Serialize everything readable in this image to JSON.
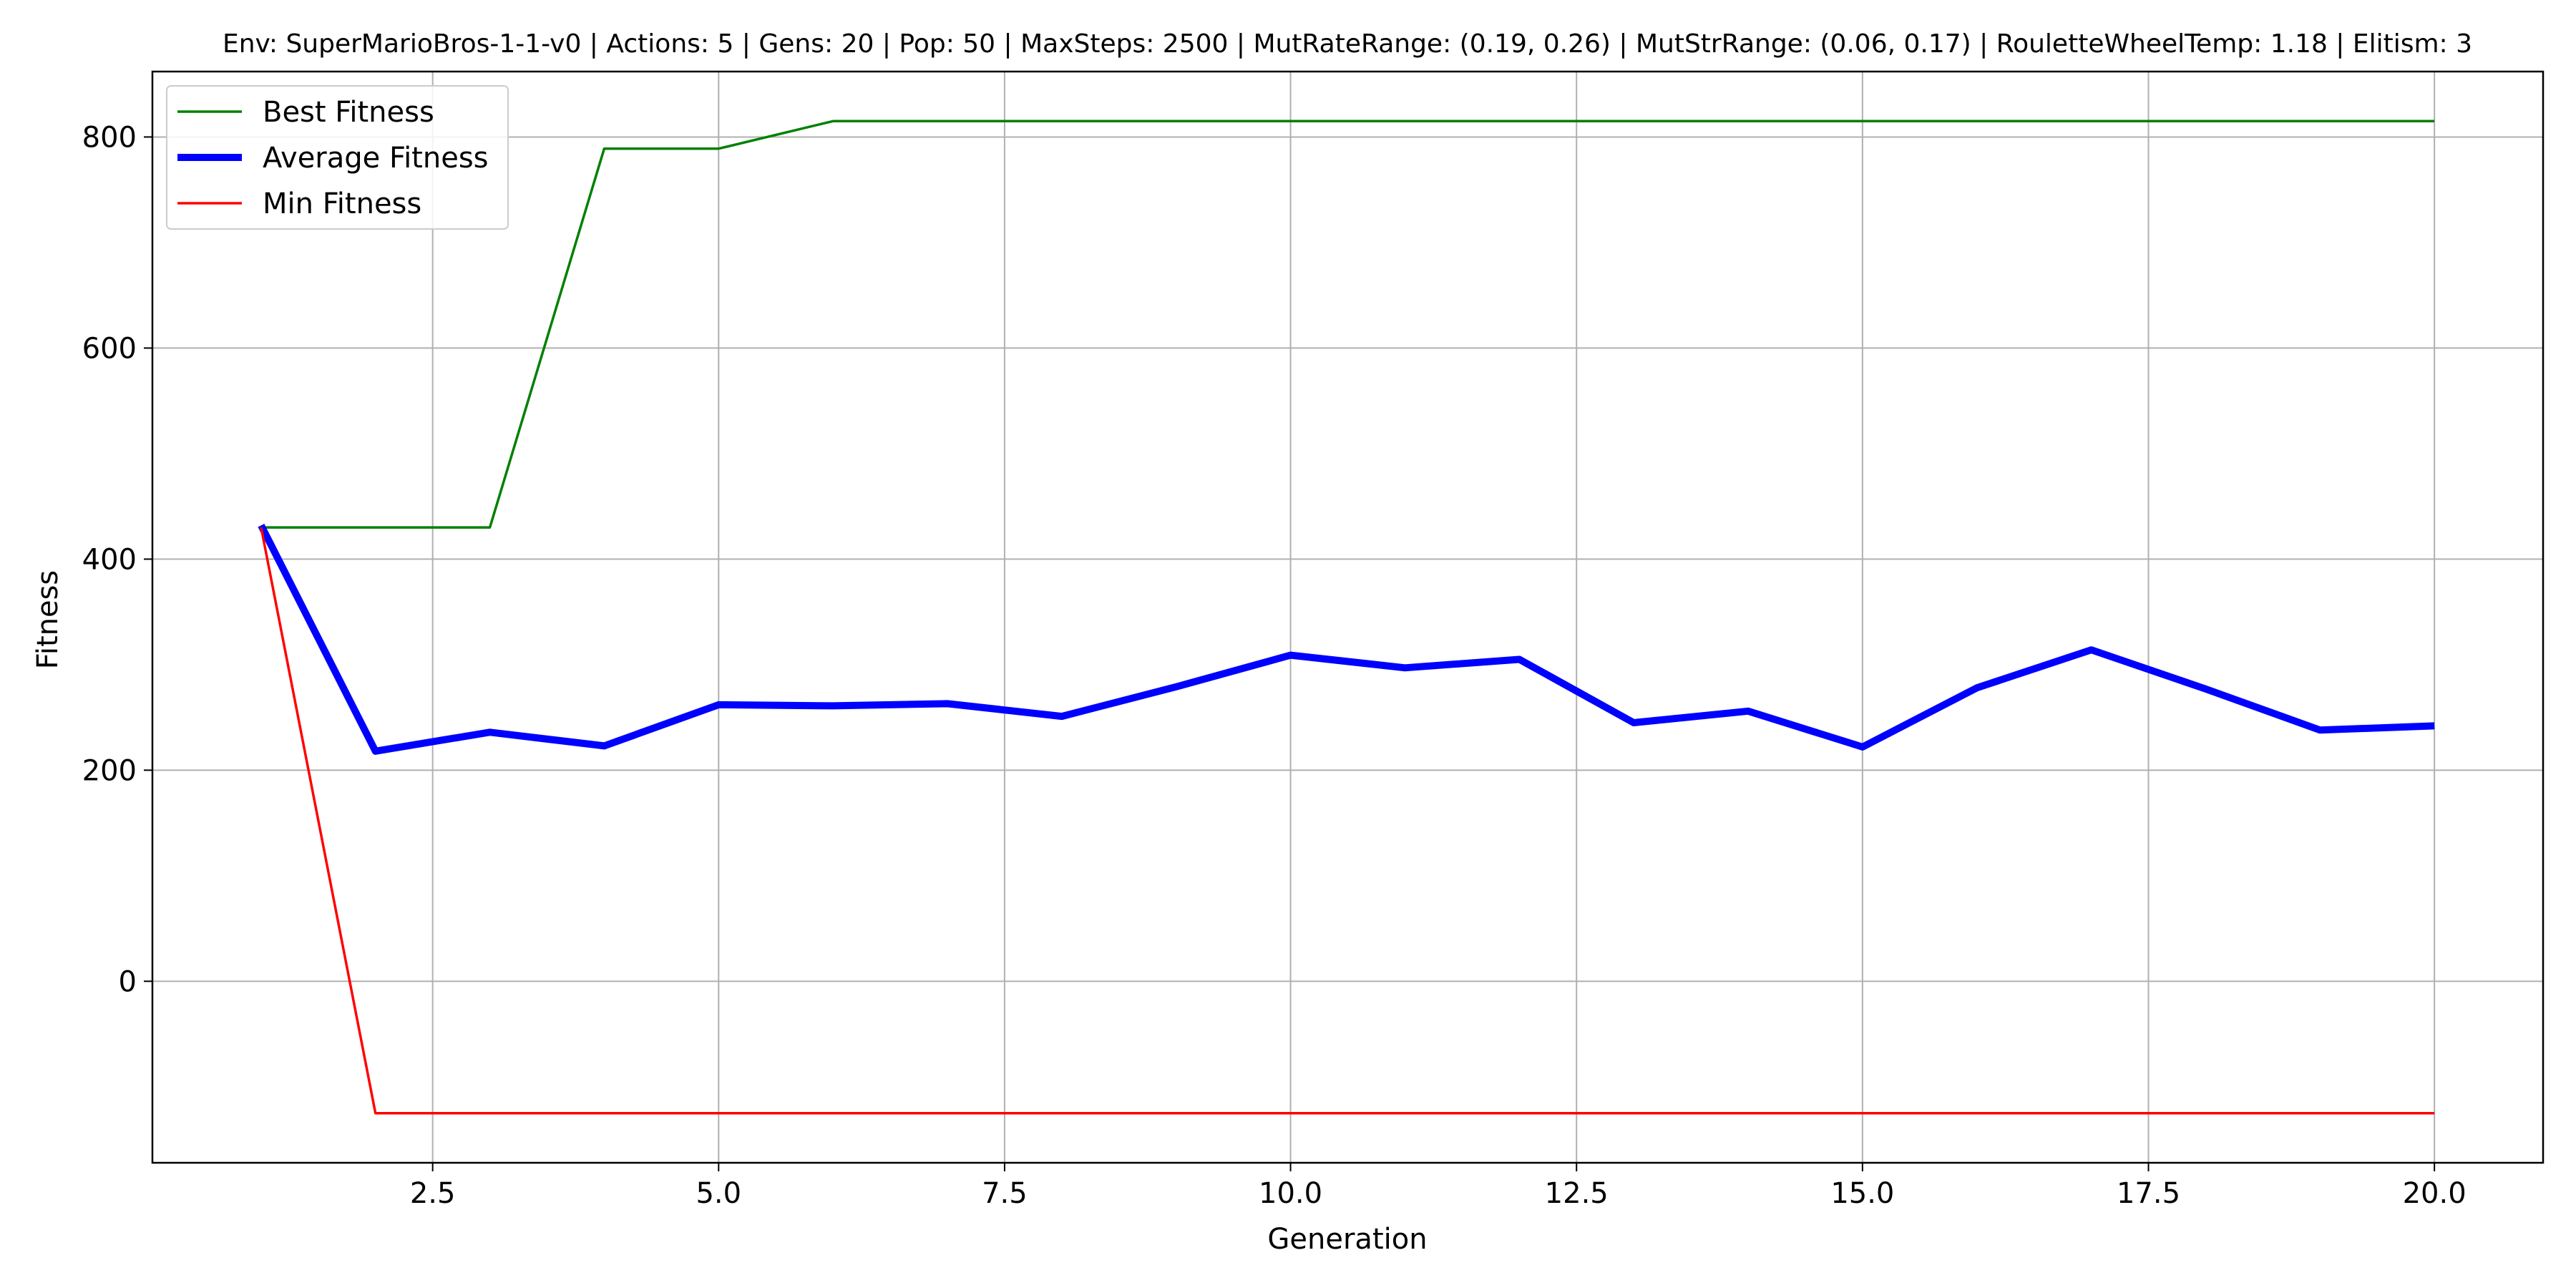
{
  "chart_data": {
    "type": "line",
    "title": "Env: SuperMarioBros-1-1-v0 | Actions: 5 | Gens: 20 | Pop: 50 | MaxSteps: 2500 | MutRateRange: (0.19, 0.26) | MutStrRange: (0.06, 0.17) | RouletteWheelTemp: 1.18 | Elitism: 3",
    "xlabel": "Generation",
    "ylabel": "Fitness",
    "xlim": [
      0.05,
      20.95
    ],
    "ylim": [
      -172,
      862
    ],
    "x_ticks": [
      2.5,
      5.0,
      7.5,
      10.0,
      12.5,
      15.0,
      17.5,
      20.0
    ],
    "x_tick_labels": [
      "2.5",
      "5.0",
      "7.5",
      "10.0",
      "12.5",
      "15.0",
      "17.5",
      "20.0"
    ],
    "y_ticks": [
      0,
      200,
      400,
      600,
      800
    ],
    "y_tick_labels": [
      "0",
      "200",
      "400",
      "600",
      "800"
    ],
    "grid": true,
    "legend_position": "top-left",
    "x": [
      1,
      2,
      3,
      4,
      5,
      6,
      7,
      8,
      9,
      10,
      11,
      12,
      13,
      14,
      15,
      16,
      17,
      18,
      19,
      20
    ],
    "series": [
      {
        "name": "Best Fitness",
        "color": "#008000",
        "line_width": "thin",
        "values": [
          430,
          430,
          430,
          789,
          789,
          815,
          815,
          815,
          815,
          815,
          815,
          815,
          815,
          815,
          815,
          815,
          815,
          815,
          815,
          815
        ]
      },
      {
        "name": "Average Fitness",
        "color": "#0000ff",
        "line_width": "thick",
        "values": [
          432,
          218,
          236,
          223,
          262,
          261,
          263,
          251,
          279,
          309,
          297,
          305,
          245,
          256,
          222,
          278,
          314,
          277,
          238,
          242
        ]
      },
      {
        "name": "Min Fitness",
        "color": "#ff0000",
        "line_width": "thin",
        "values": [
          430,
          -125,
          -125,
          -125,
          -125,
          -125,
          -125,
          -125,
          -125,
          -125,
          -125,
          -125,
          -125,
          -125,
          -125,
          -125,
          -125,
          -125,
          -125,
          -125
        ]
      }
    ]
  }
}
